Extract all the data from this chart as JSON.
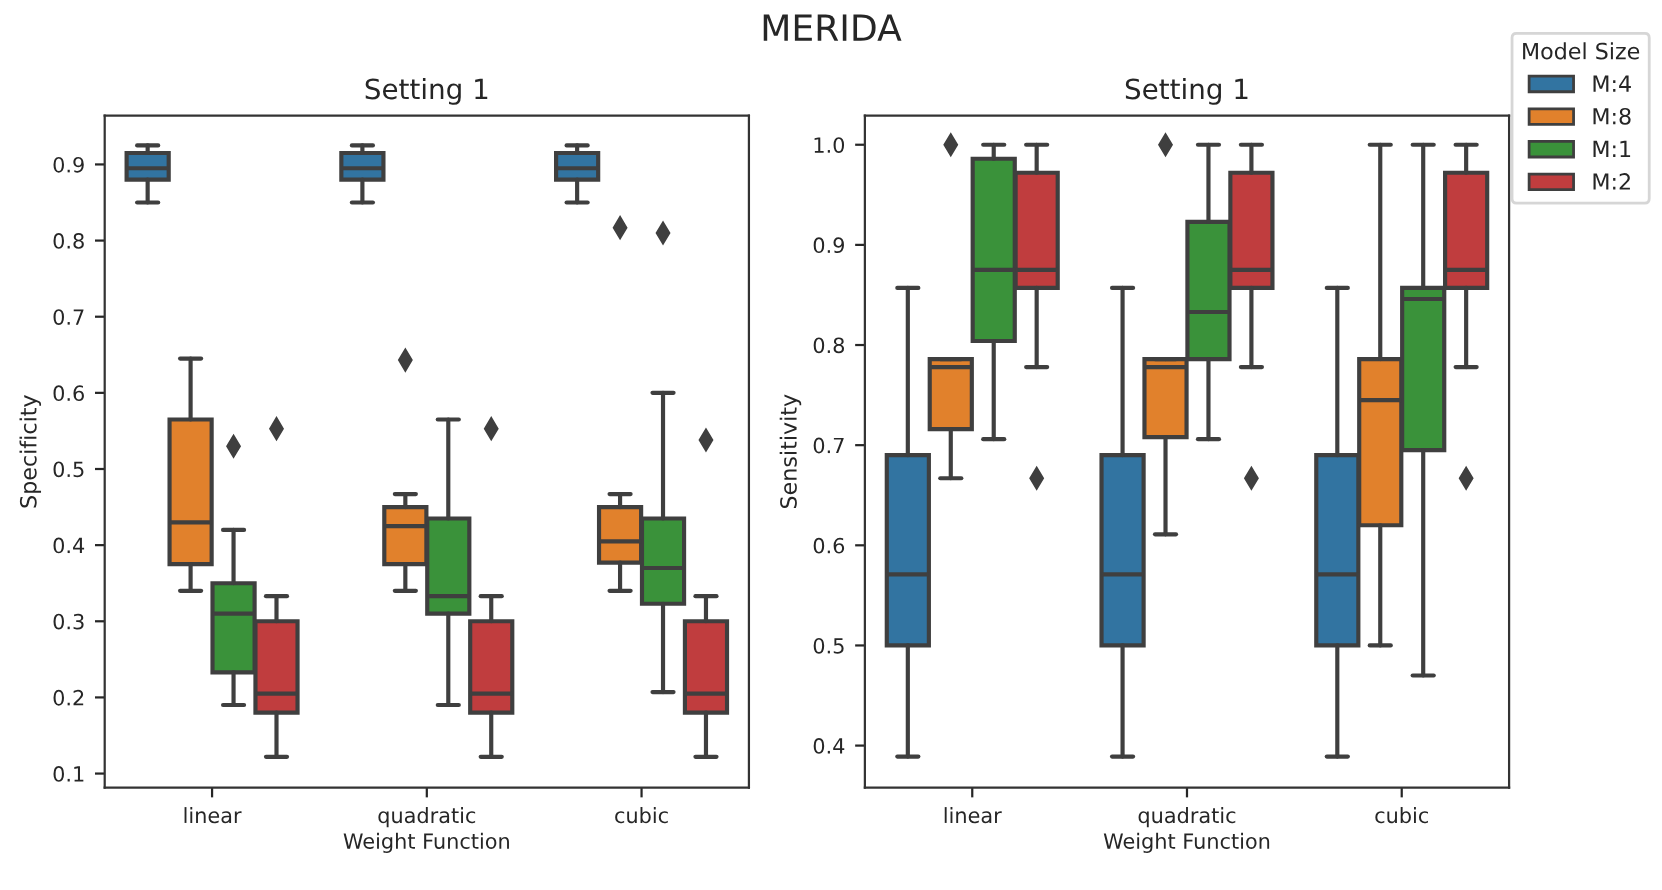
{
  "chart_data": [
    {
      "type": "box",
      "title": "Setting 1",
      "annotations": [
        "MERIDA"
      ],
      "xlabel": "Weight Function",
      "ylabel": "Specificity",
      "categories": [
        "linear",
        "quadratic",
        "cubic"
      ],
      "ylim": [
        0.0815,
        0.964
      ],
      "yticks": [
        0.1,
        0.2,
        0.3,
        0.4,
        0.5,
        0.6,
        0.7,
        0.8,
        0.9
      ],
      "grid": false,
      "series": [
        {
          "color": "#3274a1",
          "boxes": [
            {
              "low": 0.85,
              "q1": 0.88,
              "median": 0.895,
              "q3": 0.915,
              "high": 0.925
            },
            {
              "low": 0.85,
              "q1": 0.88,
              "median": 0.895,
              "q3": 0.915,
              "high": 0.925
            },
            {
              "low": 0.85,
              "q1": 0.88,
              "median": 0.895,
              "q3": 0.915,
              "high": 0.925
            }
          ]
        },
        {
          "color": "#e1812c",
          "boxes": [
            {
              "low": 0.34,
              "q1": 0.375,
              "median": 0.43,
              "q3": 0.565,
              "high": 0.645
            },
            {
              "low": 0.34,
              "q1": 0.375,
              "median": 0.425,
              "q3": 0.45,
              "high": 0.467,
              "outliers": [
                0.643
              ]
            },
            {
              "low": 0.34,
              "q1": 0.377,
              "median": 0.405,
              "q3": 0.45,
              "high": 0.467,
              "outliers": [
                0.817
              ]
            }
          ]
        },
        {
          "color": "#3a923a",
          "boxes": [
            {
              "low": 0.19,
              "q1": 0.233,
              "median": 0.31,
              "q3": 0.35,
              "high": 0.42,
              "outliers": [
                0.53
              ]
            },
            {
              "low": 0.19,
              "q1": 0.31,
              "median": 0.333,
              "q3": 0.435,
              "high": 0.565
            },
            {
              "low": 0.207,
              "q1": 0.323,
              "median": 0.37,
              "q3": 0.435,
              "high": 0.6,
              "outliers": [
                0.81
              ]
            }
          ]
        },
        {
          "color": "#c03d3e",
          "boxes": [
            {
              "low": 0.122,
              "q1": 0.18,
              "median": 0.205,
              "q3": 0.3,
              "high": 0.333,
              "outliers": [
                0.553
              ]
            },
            {
              "low": 0.122,
              "q1": 0.18,
              "median": 0.205,
              "q3": 0.3,
              "high": 0.333,
              "outliers": [
                0.553
              ]
            },
            {
              "low": 0.122,
              "q1": 0.18,
              "median": 0.205,
              "q3": 0.3,
              "high": 0.333,
              "outliers": [
                0.538
              ]
            }
          ]
        }
      ]
    },
    {
      "type": "box",
      "title": "Setting 1",
      "xlabel": "Weight Function",
      "ylabel": "Sensitivity",
      "categories": [
        "linear",
        "quadratic",
        "cubic"
      ],
      "ylim": [
        0.358,
        1.029
      ],
      "yticks": [
        0.4,
        0.5,
        0.6,
        0.7,
        0.8,
        0.9,
        {
          "value": 1.0,
          "label": "1.0"
        }
      ],
      "grid": false,
      "legend": "top right",
      "legend_title": "Model Size",
      "series": [
        {
          "name": "M:4",
          "color": "#3274a1",
          "boxes": [
            {
              "low": 0.389,
              "q1": 0.5,
              "median": 0.571,
              "q3": 0.69,
              "high": 0.857
            },
            {
              "low": 0.389,
              "q1": 0.5,
              "median": 0.571,
              "q3": 0.69,
              "high": 0.857
            },
            {
              "low": 0.389,
              "q1": 0.5,
              "median": 0.571,
              "q3": 0.69,
              "high": 0.857
            }
          ]
        },
        {
          "name": "M:8",
          "color": "#e1812c",
          "boxes": [
            {
              "low": 0.667,
              "q1": 0.716,
              "median": 0.778,
              "q3": 0.786,
              "high": 0.786,
              "outliers": [
                1.0
              ]
            },
            {
              "low": 0.611,
              "q1": 0.708,
              "median": 0.778,
              "q3": 0.786,
              "high": 0.786,
              "outliers": [
                1.0
              ]
            },
            {
              "low": 0.5,
              "q1": 0.62,
              "median": 0.745,
              "q3": 0.786,
              "high": 1.0
            }
          ]
        },
        {
          "name": "M:1",
          "color": "#3a923a",
          "boxes": [
            {
              "low": 0.706,
              "q1": 0.804,
              "median": 0.875,
              "q3": 0.986,
              "high": 1.0
            },
            {
              "low": 0.706,
              "q1": 0.786,
              "median": 0.833,
              "q3": 0.923,
              "high": 1.0
            },
            {
              "low": 0.47,
              "q1": 0.695,
              "median": 0.846,
              "q3": 0.857,
              "high": 1.0
            }
          ]
        },
        {
          "name": "M:2",
          "color": "#c03d3e",
          "boxes": [
            {
              "low": 0.778,
              "q1": 0.857,
              "median": 0.875,
              "q3": 0.972,
              "high": 1.0,
              "outliers": [
                0.667
              ]
            },
            {
              "low": 0.778,
              "q1": 0.857,
              "median": 0.875,
              "q3": 0.972,
              "high": 1.0,
              "outliers": [
                0.667
              ]
            },
            {
              "low": 0.778,
              "q1": 0.857,
              "median": 0.875,
              "q3": 0.972,
              "high": 1.0,
              "outliers": [
                0.667
              ]
            }
          ]
        }
      ]
    }
  ]
}
